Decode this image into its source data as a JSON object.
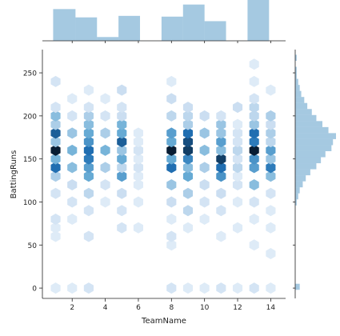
{
  "chart_data": {
    "type": "heatmap",
    "subtype": "hexbin jointplot with marginal histograms",
    "xlabel": "TeamName",
    "ylabel": "BattingRuns",
    "xlim": [
      0.2,
      14.9
    ],
    "ylim": [
      -12,
      277
    ],
    "x_ticks": [
      2,
      4,
      6,
      8,
      10,
      12,
      14
    ],
    "x_tick_labels": [
      "2",
      "4",
      "6",
      "8",
      "10",
      "12",
      "14"
    ],
    "y_ticks": [
      0,
      50,
      100,
      150,
      200,
      250
    ],
    "y_tick_labels": [
      "0",
      "50",
      "100",
      "150",
      "200",
      "250"
    ],
    "color": "#1f77b4",
    "colormap": "Blues",
    "hexbins": [
      {
        "x": 1,
        "y": 0,
        "count": 1
      },
      {
        "x": 2,
        "y": 0,
        "count": 1
      },
      {
        "x": 3,
        "y": 0,
        "count": 2
      },
      {
        "x": 8,
        "y": 0,
        "count": 2
      },
      {
        "x": 9,
        "y": 0,
        "count": 1
      },
      {
        "x": 10,
        "y": 0,
        "count": 1
      },
      {
        "x": 11,
        "y": 0,
        "count": 2
      },
      {
        "x": 12,
        "y": 0,
        "count": 1
      },
      {
        "x": 13,
        "y": 0,
        "count": 2
      },
      {
        "x": 14,
        "y": 0,
        "count": 1
      },
      {
        "x": 14,
        "y": 40,
        "count": 1
      },
      {
        "x": 13,
        "y": 50,
        "count": 1
      },
      {
        "x": 8,
        "y": 50,
        "count": 1
      },
      {
        "x": 1,
        "y": 60,
        "count": 1
      },
      {
        "x": 3,
        "y": 60,
        "count": 2
      },
      {
        "x": 8,
        "y": 60,
        "count": 2
      },
      {
        "x": 11,
        "y": 60,
        "count": 1
      },
      {
        "x": 1,
        "y": 70,
        "count": 1
      },
      {
        "x": 5,
        "y": 70,
        "count": 2
      },
      {
        "x": 6,
        "y": 70,
        "count": 1
      },
      {
        "x": 9,
        "y": 70,
        "count": 1
      },
      {
        "x": 12,
        "y": 70,
        "count": 1
      },
      {
        "x": 14,
        "y": 70,
        "count": 1
      },
      {
        "x": 1,
        "y": 80,
        "count": 2
      },
      {
        "x": 2,
        "y": 80,
        "count": 1
      },
      {
        "x": 8,
        "y": 80,
        "count": 1
      },
      {
        "x": 10,
        "y": 80,
        "count": 1
      },
      {
        "x": 13,
        "y": 80,
        "count": 1
      },
      {
        "x": 3,
        "y": 90,
        "count": 2
      },
      {
        "x": 5,
        "y": 90,
        "count": 2
      },
      {
        "x": 9,
        "y": 90,
        "count": 4
      },
      {
        "x": 11,
        "y": 90,
        "count": 2
      },
      {
        "x": 14,
        "y": 90,
        "count": 1
      },
      {
        "x": 2,
        "y": 100,
        "count": 2
      },
      {
        "x": 4,
        "y": 100,
        "count": 1
      },
      {
        "x": 6,
        "y": 100,
        "count": 1
      },
      {
        "x": 8,
        "y": 100,
        "count": 3
      },
      {
        "x": 10,
        "y": 100,
        "count": 2
      },
      {
        "x": 12,
        "y": 100,
        "count": 1
      },
      {
        "x": 13,
        "y": 100,
        "count": 2
      },
      {
        "x": 1,
        "y": 110,
        "count": 2
      },
      {
        "x": 3,
        "y": 110,
        "count": 4
      },
      {
        "x": 5,
        "y": 110,
        "count": 3
      },
      {
        "x": 9,
        "y": 110,
        "count": 5
      },
      {
        "x": 11,
        "y": 110,
        "count": 3
      },
      {
        "x": 14,
        "y": 110,
        "count": 2
      },
      {
        "x": 2,
        "y": 120,
        "count": 3
      },
      {
        "x": 4,
        "y": 120,
        "count": 2
      },
      {
        "x": 6,
        "y": 120,
        "count": 1
      },
      {
        "x": 8,
        "y": 120,
        "count": 6
      },
      {
        "x": 10,
        "y": 120,
        "count": 3
      },
      {
        "x": 12,
        "y": 120,
        "count": 2
      },
      {
        "x": 13,
        "y": 120,
        "count": 7
      },
      {
        "x": 1,
        "y": 130,
        "count": 5
      },
      {
        "x": 3,
        "y": 130,
        "count": 9
      },
      {
        "x": 5,
        "y": 130,
        "count": 10
      },
      {
        "x": 6,
        "y": 130,
        "count": 1
      },
      {
        "x": 9,
        "y": 130,
        "count": 9
      },
      {
        "x": 11,
        "y": 130,
        "count": 11
      },
      {
        "x": 12,
        "y": 130,
        "count": 1
      },
      {
        "x": 14,
        "y": 130,
        "count": 7
      },
      {
        "x": 1,
        "y": 140,
        "count": 14
      },
      {
        "x": 2,
        "y": 140,
        "count": 7
      },
      {
        "x": 3,
        "y": 140,
        "count": 10
      },
      {
        "x": 4,
        "y": 140,
        "count": 5
      },
      {
        "x": 5,
        "y": 140,
        "count": 4
      },
      {
        "x": 6,
        "y": 140,
        "count": 2
      },
      {
        "x": 8,
        "y": 140,
        "count": 14
      },
      {
        "x": 9,
        "y": 140,
        "count": 7
      },
      {
        "x": 10,
        "y": 140,
        "count": 5
      },
      {
        "x": 11,
        "y": 140,
        "count": 14
      },
      {
        "x": 12,
        "y": 140,
        "count": 4
      },
      {
        "x": 13,
        "y": 140,
        "count": 10
      },
      {
        "x": 14,
        "y": 140,
        "count": 13
      },
      {
        "x": 1,
        "y": 150,
        "count": 8
      },
      {
        "x": 3,
        "y": 150,
        "count": 13
      },
      {
        "x": 5,
        "y": 150,
        "count": 9
      },
      {
        "x": 6,
        "y": 150,
        "count": 1
      },
      {
        "x": 8,
        "y": 150,
        "count": 9
      },
      {
        "x": 9,
        "y": 150,
        "count": 12
      },
      {
        "x": 11,
        "y": 150,
        "count": 17
      },
      {
        "x": 12,
        "y": 150,
        "count": 2
      },
      {
        "x": 13,
        "y": 150,
        "count": 11
      },
      {
        "x": 14,
        "y": 150,
        "count": 6
      },
      {
        "x": 1,
        "y": 160,
        "count": 19
      },
      {
        "x": 2,
        "y": 160,
        "count": 8
      },
      {
        "x": 3,
        "y": 160,
        "count": 14
      },
      {
        "x": 4,
        "y": 160,
        "count": 8
      },
      {
        "x": 5,
        "y": 160,
        "count": 6
      },
      {
        "x": 6,
        "y": 160,
        "count": 2
      },
      {
        "x": 8,
        "y": 160,
        "count": 19
      },
      {
        "x": 9,
        "y": 160,
        "count": 17
      },
      {
        "x": 10,
        "y": 160,
        "count": 7
      },
      {
        "x": 11,
        "y": 160,
        "count": 7
      },
      {
        "x": 12,
        "y": 160,
        "count": 4
      },
      {
        "x": 13,
        "y": 160,
        "count": 19
      },
      {
        "x": 14,
        "y": 160,
        "count": 10
      },
      {
        "x": 1,
        "y": 170,
        "count": 6
      },
      {
        "x": 3,
        "y": 170,
        "count": 11
      },
      {
        "x": 5,
        "y": 170,
        "count": 15
      },
      {
        "x": 6,
        "y": 170,
        "count": 1
      },
      {
        "x": 8,
        "y": 170,
        "count": 9
      },
      {
        "x": 9,
        "y": 170,
        "count": 16
      },
      {
        "x": 11,
        "y": 170,
        "count": 10
      },
      {
        "x": 12,
        "y": 170,
        "count": 2
      },
      {
        "x": 13,
        "y": 170,
        "count": 13
      },
      {
        "x": 14,
        "y": 170,
        "count": 4
      },
      {
        "x": 1,
        "y": 180,
        "count": 15
      },
      {
        "x": 2,
        "y": 180,
        "count": 6
      },
      {
        "x": 3,
        "y": 180,
        "count": 9
      },
      {
        "x": 4,
        "y": 180,
        "count": 5
      },
      {
        "x": 5,
        "y": 180,
        "count": 9
      },
      {
        "x": 6,
        "y": 180,
        "count": 1
      },
      {
        "x": 8,
        "y": 180,
        "count": 10
      },
      {
        "x": 9,
        "y": 180,
        "count": 14
      },
      {
        "x": 10,
        "y": 180,
        "count": 6
      },
      {
        "x": 11,
        "y": 180,
        "count": 6
      },
      {
        "x": 12,
        "y": 180,
        "count": 2
      },
      {
        "x": 13,
        "y": 180,
        "count": 14
      },
      {
        "x": 14,
        "y": 180,
        "count": 5
      },
      {
        "x": 1,
        "y": 190,
        "count": 5
      },
      {
        "x": 3,
        "y": 190,
        "count": 7
      },
      {
        "x": 5,
        "y": 190,
        "count": 8
      },
      {
        "x": 9,
        "y": 190,
        "count": 5
      },
      {
        "x": 11,
        "y": 190,
        "count": 6
      },
      {
        "x": 12,
        "y": 190,
        "count": 1
      },
      {
        "x": 13,
        "y": 190,
        "count": 6
      },
      {
        "x": 14,
        "y": 190,
        "count": 3
      },
      {
        "x": 1,
        "y": 200,
        "count": 7
      },
      {
        "x": 2,
        "y": 200,
        "count": 2
      },
      {
        "x": 3,
        "y": 200,
        "count": 5
      },
      {
        "x": 4,
        "y": 200,
        "count": 2
      },
      {
        "x": 5,
        "y": 200,
        "count": 3
      },
      {
        "x": 8,
        "y": 200,
        "count": 4
      },
      {
        "x": 9,
        "y": 200,
        "count": 4
      },
      {
        "x": 10,
        "y": 200,
        "count": 3
      },
      {
        "x": 11,
        "y": 200,
        "count": 2
      },
      {
        "x": 13,
        "y": 200,
        "count": 4
      },
      {
        "x": 14,
        "y": 200,
        "count": 5
      },
      {
        "x": 1,
        "y": 210,
        "count": 2
      },
      {
        "x": 3,
        "y": 210,
        "count": 2
      },
      {
        "x": 5,
        "y": 210,
        "count": 2
      },
      {
        "x": 9,
        "y": 210,
        "count": 3
      },
      {
        "x": 12,
        "y": 210,
        "count": 3
      },
      {
        "x": 13,
        "y": 210,
        "count": 4
      },
      {
        "x": 2,
        "y": 220,
        "count": 1
      },
      {
        "x": 4,
        "y": 220,
        "count": 1
      },
      {
        "x": 8,
        "y": 220,
        "count": 3
      },
      {
        "x": 13,
        "y": 220,
        "count": 2
      },
      {
        "x": 3,
        "y": 230,
        "count": 1
      },
      {
        "x": 5,
        "y": 230,
        "count": 3
      },
      {
        "x": 14,
        "y": 230,
        "count": 1
      },
      {
        "x": 1,
        "y": 240,
        "count": 2
      },
      {
        "x": 8,
        "y": 240,
        "count": 1
      },
      {
        "x": 13,
        "y": 240,
        "count": 1
      },
      {
        "x": 13,
        "y": 260,
        "count": 1
      }
    ],
    "marginal_x_hist": {
      "bins": [
        [
          0.85,
          2.2
        ],
        [
          2.2,
          3.5
        ],
        [
          3.5,
          4.8
        ],
        [
          4.8,
          6.1
        ],
        [
          6.1,
          7.4
        ],
        [
          7.4,
          8.7
        ],
        [
          8.7,
          10.0
        ],
        [
          10.0,
          11.3
        ],
        [
          11.3,
          12.6
        ],
        [
          12.6,
          13.9
        ]
      ],
      "counts": [
        42,
        31,
        5,
        33,
        0,
        32,
        48,
        26,
        0,
        54
      ]
    },
    "marginal_y_hist": {
      "bins": [
        [
          -2,
          5
        ],
        [
          5,
          12
        ],
        [
          12,
          19
        ],
        [
          19,
          26
        ],
        [
          26,
          33
        ],
        [
          33,
          40
        ],
        [
          40,
          47
        ],
        [
          47,
          54
        ],
        [
          54,
          61
        ],
        [
          61,
          68
        ],
        [
          68,
          75
        ],
        [
          75,
          82
        ],
        [
          82,
          89
        ],
        [
          89,
          96
        ],
        [
          96,
          103
        ],
        [
          103,
          110
        ],
        [
          110,
          117
        ],
        [
          117,
          124
        ],
        [
          124,
          131
        ],
        [
          131,
          138
        ],
        [
          138,
          145
        ],
        [
          145,
          152
        ],
        [
          152,
          159
        ],
        [
          159,
          166
        ],
        [
          166,
          173
        ],
        [
          173,
          180
        ],
        [
          180,
          187
        ],
        [
          187,
          194
        ],
        [
          194,
          201
        ],
        [
          201,
          208
        ],
        [
          208,
          215
        ],
        [
          215,
          222
        ],
        [
          222,
          229
        ],
        [
          229,
          236
        ],
        [
          236,
          243
        ],
        [
          243,
          250
        ],
        [
          250,
          257
        ],
        [
          257,
          264
        ],
        [
          264,
          271
        ]
      ],
      "counts": [
        3,
        0,
        0,
        0,
        0,
        0,
        0,
        0,
        0,
        0,
        0,
        0,
        0,
        0,
        1,
        2,
        3,
        5,
        7,
        10,
        14,
        17,
        20,
        24,
        25,
        27,
        22,
        18,
        14,
        11,
        8,
        6,
        4,
        3,
        2,
        1,
        1,
        0,
        1
      ]
    }
  }
}
